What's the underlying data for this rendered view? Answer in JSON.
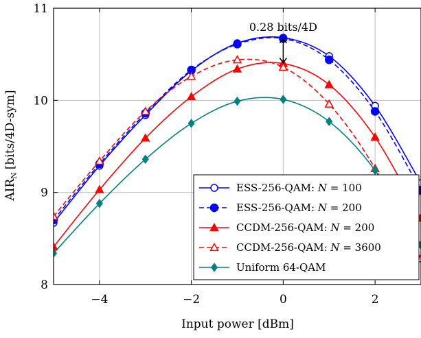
{
  "chart_data": {
    "type": "line",
    "xlabel": "Input power [dBm]",
    "ylabel": "AIR",
    "ylabel_sub": "N",
    "ylabel_unit": "[bits/4D-sym]",
    "xlim": [
      -5,
      3
    ],
    "ylim": [
      8,
      11
    ],
    "xticks": [
      -4,
      -2,
      0,
      2
    ],
    "xtick_labels": [
      "−4",
      "−2",
      "0",
      "2"
    ],
    "yticks": [
      8,
      9,
      10,
      11
    ],
    "ytick_labels": [
      "8",
      "9",
      "10",
      "11"
    ],
    "grid": true,
    "legend_position": "bottom-right",
    "annotation": {
      "text": "0.28 bits/4D",
      "x": 0,
      "y_from": 10.4,
      "y_to": 10.68
    },
    "series": [
      {
        "name": "ESS-256-QAM: N = 100",
        "color": "#0000ff",
        "dash": "solid",
        "marker": "circle-open",
        "x": [
          -5,
          -4,
          -3,
          -2,
          -1,
          0,
          1,
          2,
          3
        ],
        "y": [
          8.67,
          9.29,
          9.84,
          10.32,
          10.62,
          10.68,
          10.48,
          9.94,
          9.1
        ]
      },
      {
        "name": "ESS-256-QAM: N = 200",
        "color": "#0000ff",
        "dash": "dashed",
        "marker": "circle-filled",
        "x": [
          -5,
          -4,
          -3,
          -2,
          -1,
          0,
          1,
          2,
          3
        ],
        "y": [
          8.7,
          9.31,
          9.86,
          10.33,
          10.61,
          10.67,
          10.44,
          9.88,
          9.02
        ]
      },
      {
        "name": "CCDM-256-QAM: N = 200",
        "color": "#ff0000",
        "dash": "solid",
        "marker": "triangle-filled",
        "x": [
          -5,
          -4,
          -3,
          -2,
          -1,
          0,
          1,
          2,
          3
        ],
        "y": [
          8.41,
          9.03,
          9.59,
          10.04,
          10.34,
          10.4,
          10.17,
          9.6,
          8.72
        ]
      },
      {
        "name": "CCDM-256-QAM: N = 3600",
        "color": "#ff0000",
        "dash": "dashed",
        "marker": "triangle-open",
        "x": [
          -5,
          -4,
          -3,
          -2,
          -1,
          0,
          1,
          2,
          3
        ],
        "y": [
          8.74,
          9.34,
          9.88,
          10.26,
          10.44,
          10.36,
          9.96,
          9.26,
          8.28
        ]
      },
      {
        "name": "Uniform 64-QAM",
        "color": "#008080",
        "dash": "solid",
        "marker": "diamond-filled",
        "x": [
          -5,
          -4,
          -3,
          -2,
          -1,
          0,
          1,
          2,
          3
        ],
        "y": [
          8.34,
          8.88,
          9.36,
          9.75,
          9.99,
          10.01,
          9.77,
          9.24,
          8.43
        ]
      }
    ],
    "legend": [
      {
        "prefix": "ESS-256-QAM: ",
        "var": "N",
        "suffix": " = 100"
      },
      {
        "prefix": "ESS-256-QAM: ",
        "var": "N",
        "suffix": " = 200"
      },
      {
        "prefix": "CCDM-256-QAM: ",
        "var": "N",
        "suffix": " = 200"
      },
      {
        "prefix": "CCDM-256-QAM: ",
        "var": "N",
        "suffix": " = 3600"
      },
      {
        "prefix": "Uniform 64-QAM",
        "var": "",
        "suffix": ""
      }
    ]
  }
}
